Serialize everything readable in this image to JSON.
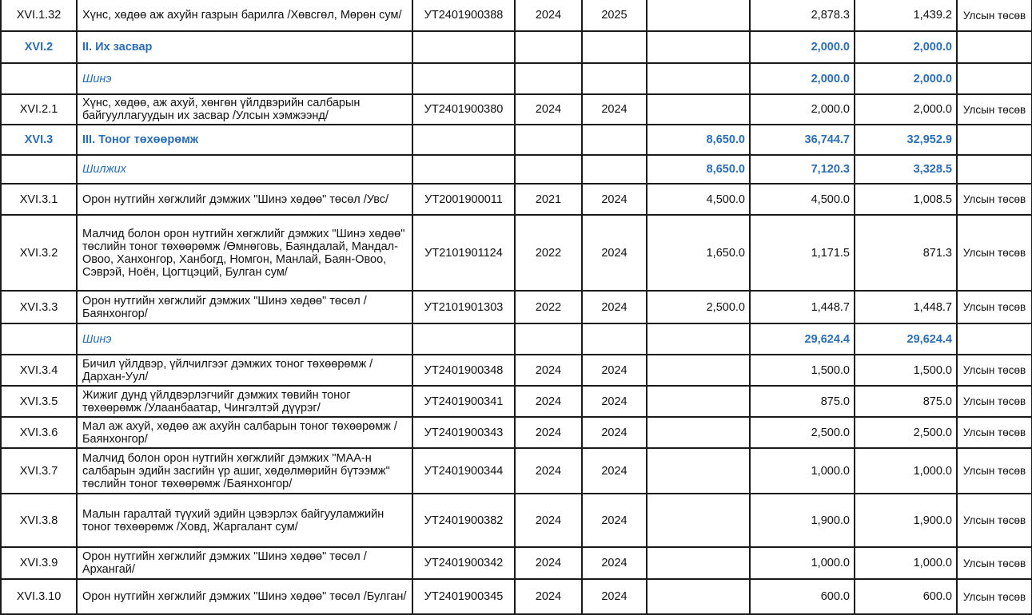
{
  "table": {
    "rows": [
      {
        "type": "item",
        "cells": [
          "XVI.1.32",
          "Хүнс, хөдөө аж ахуйн газрын барилга /Хөвсгөл, Мөрөн сум/",
          "УТ2401900388",
          "2024",
          "2025",
          "",
          "2,878.3",
          "1,439.2",
          "Улсын төсөв"
        ]
      },
      {
        "type": "hdr",
        "cells": [
          "XVI.2",
          "II. Их засвар",
          "",
          "",
          "",
          "",
          "2,000.0",
          "2,000.0",
          ""
        ]
      },
      {
        "type": "sub",
        "cells": [
          "",
          "Шинэ",
          "",
          "",
          "",
          "",
          "2,000.0",
          "2,000.0",
          ""
        ]
      },
      {
        "type": "item",
        "cells": [
          "XVI.2.1",
          "Хүнс, хөдөө, аж ахуй, хөнгөн үйлдвэрийн салбарын байгууллагуудын их засвар /Улсын хэмжээнд/",
          "УТ2401900380",
          "2024",
          "2024",
          "",
          "2,000.0",
          "2,000.0",
          "Улсын төсөв"
        ]
      },
      {
        "type": "hdr",
        "cells": [
          "XVI.3",
          "III. Тоног төхөөрөмж",
          "",
          "",
          "",
          "8,650.0",
          "36,744.7",
          "32,952.9",
          ""
        ]
      },
      {
        "type": "sub",
        "cells": [
          "",
          "Шилжих",
          "",
          "",
          "",
          "8,650.0",
          "7,120.3",
          "3,328.5",
          ""
        ]
      },
      {
        "type": "item",
        "cells": [
          "XVI.3.1",
          "Орон нутгийн хөгжлийг дэмжих \"Шинэ хөдөө\" төсөл /Увс/",
          "УТ2001900011",
          "2021",
          "2024",
          "4,500.0",
          "4,500.0",
          "1,008.5",
          "Улсын төсөв"
        ]
      },
      {
        "type": "item",
        "cells": [
          "XVI.3.2",
          "Малчид болон орон нутгийн хөгжлийг дэмжих \"Шинэ хөдөө\" төслийн тоног төхөөрөмж /Өмнөговь, Баяндалай, Мандал-Овоо, Ханхонгор, Ханбогд, Номгон, Манлай, Баян-Овоо, Сэврэй, Ноён, Цогтцэций, Булган сум/",
          "УТ2101901124",
          "2022",
          "2024",
          "1,650.0",
          "1,171.5",
          "871.3",
          "Улсын төсөв"
        ]
      },
      {
        "type": "item",
        "cells": [
          "XVI.3.3",
          "Орон нутгийн хөгжлийг дэмжих \"Шинэ хөдөө\" төсөл /Баянхонгор/",
          "УТ2101901303",
          "2022",
          "2024",
          "2,500.0",
          "1,448.7",
          "1,448.7",
          "Улсын төсөв"
        ]
      },
      {
        "type": "sub",
        "cells": [
          "",
          "Шинэ",
          "",
          "",
          "",
          "",
          "29,624.4",
          "29,624.4",
          ""
        ]
      },
      {
        "type": "item",
        "cells": [
          "XVI.3.4",
          "Бичил үйлдвэр, үйлчилгээг дэмжих тоног төхөөрөмж /Дархан-Уул/",
          "УТ2401900348",
          "2024",
          "2024",
          "",
          "1,500.0",
          "1,500.0",
          "Улсын төсөв"
        ]
      },
      {
        "type": "item",
        "cells": [
          "XVI.3.5",
          "Жижиг дунд үйлдвэрлэгчийг дэмжих төвийн тоног төхөөрөмж /Улаанбаатар, Чингэлтэй дүүрэг/",
          "УТ2401900341",
          "2024",
          "2024",
          "",
          "875.0",
          "875.0",
          "Улсын төсөв"
        ]
      },
      {
        "type": "item",
        "cells": [
          "XVI.3.6",
          "Мал аж ахуй, хөдөө аж ахуйн салбарын тоног төхөөрөмж /Баянхонгор/",
          "УТ2401900343",
          "2024",
          "2024",
          "",
          "2,500.0",
          "2,500.0",
          "Улсын төсөв"
        ]
      },
      {
        "type": "item",
        "cells": [
          "XVI.3.7",
          "Малчид болон орон нутгийн хөгжлийг дэмжих \"МАА-н салбарын эдийн засгийн үр ашиг, хөдөлмөрийн бүтээмж\" төслийн тоног төхөөрөмж /Баянхонгор/",
          "УТ2401900344",
          "2024",
          "2024",
          "",
          "1,000.0",
          "1,000.0",
          "Улсын төсөв"
        ]
      },
      {
        "type": "item",
        "cells": [
          "XVI.3.8",
          "Малын гаралтай түүхий эдийн цэвэрлэх байгууламжийн тоног төхөөрөмж /Ховд, Жаргалант сум/",
          "УТ2401900382",
          "2024",
          "2024",
          "",
          "1,900.0",
          "1,900.0",
          "Улсын төсөв"
        ]
      },
      {
        "type": "item",
        "cells": [
          "XVI.3.9",
          "Орон нутгийн хөгжлийг дэмжих \"Шинэ хөдөө\" төсөл /Архангай/",
          "УТ2401900342",
          "2024",
          "2024",
          "",
          "1,000.0",
          "1,000.0",
          "Улсын төсөв"
        ]
      },
      {
        "type": "item",
        "cells": [
          "XVI.3.10",
          "Орон нутгийн хөгжлийг дэмжих \"Шинэ хөдөө\" төсөл /Булган/",
          "УТ2401900345",
          "2024",
          "2024",
          "",
          "600.0",
          "600.0",
          "Улсын төсөв"
        ]
      }
    ]
  },
  "colors": {
    "accent": "#2a6db5",
    "border": "#1a1a1a"
  }
}
